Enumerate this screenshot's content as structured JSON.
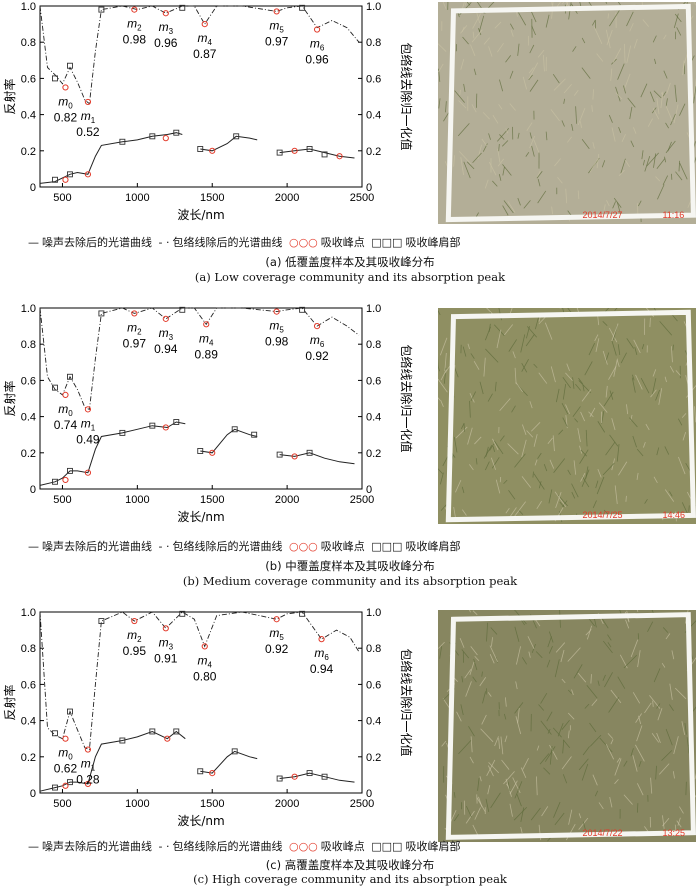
{
  "legend": {
    "noise": "噪声去除后的光谱曲线",
    "envelope": "包络线除后的光谱曲线",
    "absorption": "吸收峰点",
    "shoulder": "吸收峰肩部"
  },
  "axes": {
    "ylabel_left": "反射率",
    "ylabel_right": "包络线去除归一化值",
    "xlabel": "波长/nm",
    "xticks": [
      "500",
      "1000",
      "1500",
      "2000",
      "2500"
    ],
    "yticks": [
      "0",
      "0.2",
      "0.4",
      "0.6",
      "0.8",
      "1.0"
    ]
  },
  "panels": [
    {
      "caption_cn": "(a) 低覆盖度样本及其吸收峰分布",
      "caption_en": "(a) Low coverage community and its absorption peak",
      "photo_timestamp": "2014/7/27",
      "photo_time": "11:16",
      "photo_color": "#b3ae97"
    },
    {
      "caption_cn": "(b) 中覆盖度样本及其吸收峰分布",
      "caption_en": "(b) Medium coverage community and its absorption peak",
      "photo_timestamp": "2014/7/25",
      "photo_time": "14:46",
      "photo_color": "#8f8f62"
    },
    {
      "caption_cn": "(c) 高覆盖度样本及其吸收峰分布",
      "caption_en": "(c) High coverage community and its absorption peak",
      "photo_timestamp": "2014/7/22",
      "photo_time": "13:25",
      "photo_color": "#878660"
    }
  ],
  "chart_data": [
    {
      "type": "line",
      "xlim": [
        350,
        2500
      ],
      "ylim": [
        0,
        1.0
      ],
      "peaks": [
        {
          "name": "m",
          "sub": "0",
          "value": "0.82",
          "x": 520,
          "y": 0.55
        },
        {
          "name": "m",
          "sub": "1",
          "value": "0.52",
          "x": 670,
          "y": 0.47
        },
        {
          "name": "m",
          "sub": "2",
          "value": "0.98",
          "x": 980,
          "y": 0.98
        },
        {
          "name": "m",
          "sub": "3",
          "value": "0.96",
          "x": 1190,
          "y": 0.96
        },
        {
          "name": "m",
          "sub": "4",
          "value": "0.87",
          "x": 1450,
          "y": 0.9
        },
        {
          "name": "m",
          "sub": "5",
          "value": "0.97",
          "x": 1930,
          "y": 0.97
        },
        {
          "name": "m",
          "sub": "6",
          "value": "0.96",
          "x": 2200,
          "y": 0.87
        }
      ],
      "reflectance_segments": [
        [
          [
            350,
            0.02
          ],
          [
            450,
            0.03
          ],
          [
            500,
            0.05
          ],
          [
            550,
            0.07
          ],
          [
            600,
            0.08
          ],
          [
            670,
            0.07
          ],
          [
            720,
            0.17
          ],
          [
            760,
            0.23
          ],
          [
            900,
            0.25
          ],
          [
            1000,
            0.26
          ],
          [
            1100,
            0.28
          ],
          [
            1200,
            0.29
          ],
          [
            1260,
            0.3
          ],
          [
            1300,
            0.29
          ]
        ],
        [
          [
            1420,
            0.21
          ],
          [
            1500,
            0.2
          ],
          [
            1600,
            0.24
          ],
          [
            1660,
            0.28
          ],
          [
            1750,
            0.27
          ],
          [
            1800,
            0.26
          ]
        ],
        [
          [
            1950,
            0.19
          ],
          [
            2050,
            0.2
          ],
          [
            2150,
            0.21
          ],
          [
            2250,
            0.19
          ],
          [
            2350,
            0.17
          ],
          [
            2450,
            0.16
          ]
        ]
      ],
      "envelope_segments": [
        [
          [
            350,
            1.0
          ],
          [
            400,
            0.66
          ],
          [
            450,
            0.62
          ],
          [
            500,
            0.57
          ],
          [
            550,
            0.66
          ],
          [
            600,
            0.58
          ],
          [
            650,
            0.48
          ],
          [
            680,
            0.46
          ],
          [
            720,
            0.75
          ],
          [
            760,
            0.98
          ],
          [
            900,
            1.0
          ],
          [
            1000,
            0.98
          ],
          [
            1100,
            1.0
          ],
          [
            1190,
            0.96
          ],
          [
            1300,
            1.0
          ],
          [
            1380,
            1.0
          ],
          [
            1450,
            0.9
          ],
          [
            1530,
            1.0
          ],
          [
            1700,
            1.0
          ],
          [
            1930,
            0.97
          ],
          [
            2000,
            0.99
          ],
          [
            2100,
            1.0
          ],
          [
            2200,
            0.88
          ],
          [
            2300,
            0.92
          ],
          [
            2400,
            0.88
          ],
          [
            2480,
            0.8
          ]
        ]
      ],
      "absorption_points": [
        [
          520,
          0.55
        ],
        [
          670,
          0.47
        ],
        [
          980,
          0.98
        ],
        [
          1190,
          0.96
        ],
        [
          1450,
          0.9
        ],
        [
          1930,
          0.97
        ],
        [
          2200,
          0.87
        ],
        [
          520,
          0.04
        ],
        [
          670,
          0.07
        ],
        [
          1190,
          0.27
        ],
        [
          1500,
          0.2
        ],
        [
          2050,
          0.2
        ],
        [
          2350,
          0.17
        ]
      ],
      "shoulder_points": [
        [
          450,
          0.6
        ],
        [
          550,
          0.67
        ],
        [
          760,
          0.98
        ],
        [
          1300,
          0.99
        ],
        [
          2100,
          0.99
        ],
        [
          450,
          0.04
        ],
        [
          550,
          0.07
        ],
        [
          900,
          0.25
        ],
        [
          1100,
          0.28
        ],
        [
          1260,
          0.3
        ],
        [
          1420,
          0.21
        ],
        [
          1660,
          0.28
        ],
        [
          1950,
          0.19
        ],
        [
          2150,
          0.21
        ],
        [
          2250,
          0.18
        ]
      ]
    },
    {
      "type": "line",
      "xlim": [
        350,
        2500
      ],
      "ylim": [
        0,
        1.0
      ],
      "peaks": [
        {
          "name": "m",
          "sub": "0",
          "value": "0.74",
          "x": 520,
          "y": 0.52
        },
        {
          "name": "m",
          "sub": "1",
          "value": "0.49",
          "x": 670,
          "y": 0.44
        },
        {
          "name": "m",
          "sub": "2",
          "value": "0.97",
          "x": 980,
          "y": 0.97
        },
        {
          "name": "m",
          "sub": "3",
          "value": "0.94",
          "x": 1190,
          "y": 0.94
        },
        {
          "name": "m",
          "sub": "4",
          "value": "0.89",
          "x": 1460,
          "y": 0.91
        },
        {
          "name": "m",
          "sub": "5",
          "value": "0.98",
          "x": 1930,
          "y": 0.98
        },
        {
          "name": "m",
          "sub": "6",
          "value": "0.92",
          "x": 2200,
          "y": 0.9
        }
      ],
      "reflectance_segments": [
        [
          [
            350,
            0.02
          ],
          [
            450,
            0.04
          ],
          [
            500,
            0.06
          ],
          [
            550,
            0.1
          ],
          [
            600,
            0.1
          ],
          [
            670,
            0.09
          ],
          [
            720,
            0.22
          ],
          [
            760,
            0.29
          ],
          [
            900,
            0.31
          ],
          [
            1000,
            0.33
          ],
          [
            1100,
            0.35
          ],
          [
            1200,
            0.34
          ],
          [
            1260,
            0.37
          ],
          [
            1320,
            0.36
          ]
        ],
        [
          [
            1420,
            0.21
          ],
          [
            1500,
            0.2
          ],
          [
            1600,
            0.3
          ],
          [
            1650,
            0.33
          ],
          [
            1750,
            0.3
          ],
          [
            1800,
            0.29
          ]
        ],
        [
          [
            1950,
            0.19
          ],
          [
            2050,
            0.18
          ],
          [
            2150,
            0.2
          ],
          [
            2250,
            0.17
          ],
          [
            2350,
            0.15
          ],
          [
            2450,
            0.14
          ]
        ]
      ],
      "envelope_segments": [
        [
          [
            350,
            1.0
          ],
          [
            400,
            0.62
          ],
          [
            450,
            0.55
          ],
          [
            500,
            0.52
          ],
          [
            550,
            0.62
          ],
          [
            600,
            0.55
          ],
          [
            650,
            0.45
          ],
          [
            680,
            0.44
          ],
          [
            720,
            0.72
          ],
          [
            760,
            0.97
          ],
          [
            900,
            1.0
          ],
          [
            980,
            0.97
          ],
          [
            1100,
            1.0
          ],
          [
            1190,
            0.94
          ],
          [
            1300,
            1.0
          ],
          [
            1380,
            1.0
          ],
          [
            1460,
            0.91
          ],
          [
            1530,
            1.0
          ],
          [
            1700,
            1.0
          ],
          [
            1930,
            0.98
          ],
          [
            2000,
            0.99
          ],
          [
            2100,
            1.0
          ],
          [
            2200,
            0.9
          ],
          [
            2300,
            0.95
          ],
          [
            2400,
            0.9
          ],
          [
            2480,
            0.85
          ]
        ]
      ],
      "absorption_points": [
        [
          520,
          0.52
        ],
        [
          670,
          0.44
        ],
        [
          980,
          0.97
        ],
        [
          1190,
          0.94
        ],
        [
          1460,
          0.91
        ],
        [
          1930,
          0.98
        ],
        [
          2200,
          0.9
        ],
        [
          520,
          0.05
        ],
        [
          670,
          0.09
        ],
        [
          1190,
          0.34
        ],
        [
          1500,
          0.2
        ],
        [
          2050,
          0.18
        ]
      ],
      "shoulder_points": [
        [
          450,
          0.56
        ],
        [
          550,
          0.62
        ],
        [
          760,
          0.97
        ],
        [
          1300,
          0.99
        ],
        [
          2100,
          0.99
        ],
        [
          450,
          0.04
        ],
        [
          550,
          0.1
        ],
        [
          900,
          0.31
        ],
        [
          1100,
          0.35
        ],
        [
          1260,
          0.37
        ],
        [
          1420,
          0.21
        ],
        [
          1650,
          0.33
        ],
        [
          1780,
          0.3
        ],
        [
          1950,
          0.19
        ],
        [
          2150,
          0.2
        ]
      ]
    },
    {
      "type": "line",
      "xlim": [
        350,
        2500
      ],
      "ylim": [
        0,
        1.0
      ],
      "peaks": [
        {
          "name": "m",
          "sub": "0",
          "value": "0.62",
          "x": 520,
          "y": 0.3
        },
        {
          "name": "m",
          "sub": "1",
          "value": "0.28",
          "x": 670,
          "y": 0.24
        },
        {
          "name": "m",
          "sub": "2",
          "value": "0.95",
          "x": 980,
          "y": 0.95
        },
        {
          "name": "m",
          "sub": "3",
          "value": "0.91",
          "x": 1190,
          "y": 0.91
        },
        {
          "name": "m",
          "sub": "4",
          "value": "0.80",
          "x": 1450,
          "y": 0.81
        },
        {
          "name": "m",
          "sub": "5",
          "value": "0.92",
          "x": 1930,
          "y": 0.96
        },
        {
          "name": "m",
          "sub": "6",
          "value": "0.94",
          "x": 2230,
          "y": 0.85
        }
      ],
      "reflectance_segments": [
        [
          [
            350,
            0.01
          ],
          [
            450,
            0.03
          ],
          [
            500,
            0.04
          ],
          [
            550,
            0.06
          ],
          [
            600,
            0.06
          ],
          [
            670,
            0.05
          ],
          [
            720,
            0.2
          ],
          [
            760,
            0.27
          ],
          [
            900,
            0.29
          ],
          [
            1000,
            0.31
          ],
          [
            1100,
            0.34
          ],
          [
            1200,
            0.3
          ],
          [
            1260,
            0.34
          ],
          [
            1320,
            0.3
          ]
        ],
        [
          [
            1420,
            0.12
          ],
          [
            1500,
            0.11
          ],
          [
            1600,
            0.2
          ],
          [
            1650,
            0.23
          ],
          [
            1750,
            0.2
          ],
          [
            1800,
            0.19
          ]
        ],
        [
          [
            1950,
            0.08
          ],
          [
            2050,
            0.09
          ],
          [
            2150,
            0.11
          ],
          [
            2250,
            0.09
          ],
          [
            2350,
            0.07
          ],
          [
            2450,
            0.06
          ]
        ]
      ],
      "envelope_segments": [
        [
          [
            350,
            1.0
          ],
          [
            400,
            0.36
          ],
          [
            450,
            0.32
          ],
          [
            500,
            0.3
          ],
          [
            550,
            0.45
          ],
          [
            600,
            0.35
          ],
          [
            650,
            0.25
          ],
          [
            680,
            0.24
          ],
          [
            720,
            0.6
          ],
          [
            760,
            0.95
          ],
          [
            900,
            1.0
          ],
          [
            980,
            0.95
          ],
          [
            1100,
            1.0
          ],
          [
            1190,
            0.91
          ],
          [
            1300,
            1.0
          ],
          [
            1380,
            0.96
          ],
          [
            1450,
            0.81
          ],
          [
            1530,
            0.98
          ],
          [
            1700,
            1.0
          ],
          [
            1930,
            0.96
          ],
          [
            2000,
            0.99
          ],
          [
            2100,
            1.0
          ],
          [
            2230,
            0.85
          ],
          [
            2330,
            0.9
          ],
          [
            2420,
            0.86
          ],
          [
            2480,
            0.78
          ]
        ]
      ],
      "absorption_points": [
        [
          520,
          0.3
        ],
        [
          670,
          0.24
        ],
        [
          980,
          0.95
        ],
        [
          1190,
          0.91
        ],
        [
          1450,
          0.81
        ],
        [
          1930,
          0.96
        ],
        [
          2230,
          0.85
        ],
        [
          520,
          0.04
        ],
        [
          670,
          0.05
        ],
        [
          1200,
          0.3
        ],
        [
          1500,
          0.11
        ],
        [
          2050,
          0.09
        ]
      ],
      "shoulder_points": [
        [
          450,
          0.33
        ],
        [
          550,
          0.45
        ],
        [
          760,
          0.95
        ],
        [
          1300,
          0.99
        ],
        [
          2100,
          0.99
        ],
        [
          450,
          0.03
        ],
        [
          550,
          0.06
        ],
        [
          900,
          0.29
        ],
        [
          1100,
          0.34
        ],
        [
          1260,
          0.34
        ],
        [
          1420,
          0.12
        ],
        [
          1650,
          0.23
        ],
        [
          1950,
          0.08
        ],
        [
          2150,
          0.11
        ],
        [
          2250,
          0.09
        ]
      ]
    }
  ]
}
